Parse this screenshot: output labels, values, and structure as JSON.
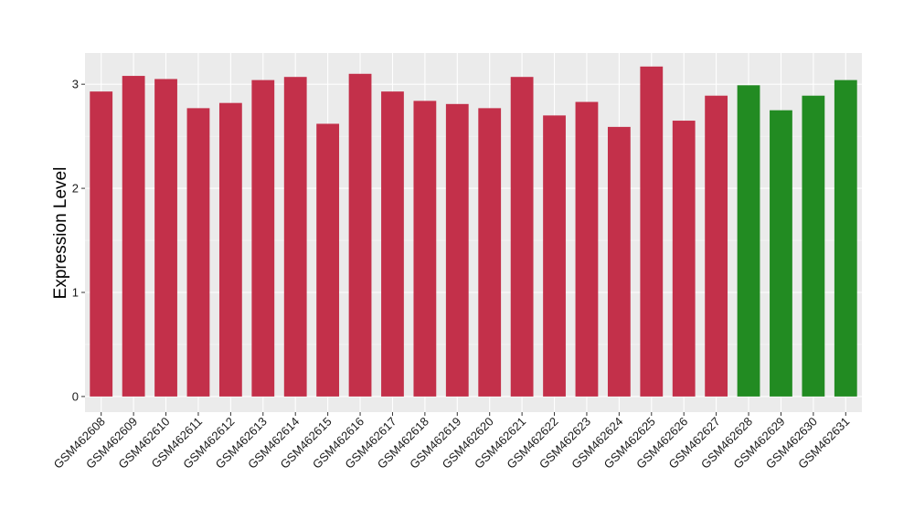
{
  "chart_data": {
    "type": "bar",
    "title": "",
    "xlabel": "",
    "ylabel": "Expression Level",
    "ylim": [
      -0.15,
      3.3
    ],
    "yticks": [
      0,
      1,
      2,
      3
    ],
    "grid": true,
    "legend": "none",
    "colors": {
      "panel_background": "#ebebeb",
      "grid_major": "#ffffff",
      "group_a": "#c3304a",
      "group_b": "#228b22"
    },
    "categories": [
      "GSM462608",
      "GSM462609",
      "GSM462610",
      "GSM462611",
      "GSM462612",
      "GSM462613",
      "GSM462614",
      "GSM462615",
      "GSM462616",
      "GSM462617",
      "GSM462618",
      "GSM462619",
      "GSM462620",
      "GSM462621",
      "GSM462622",
      "GSM462623",
      "GSM462624",
      "GSM462625",
      "GSM462626",
      "GSM462627",
      "GSM462628",
      "GSM462629",
      "GSM462630",
      "GSM462631"
    ],
    "values": [
      2.93,
      3.08,
      3.05,
      2.77,
      2.82,
      3.04,
      3.07,
      2.62,
      3.1,
      2.93,
      2.84,
      2.81,
      2.77,
      3.07,
      2.7,
      2.83,
      2.59,
      3.17,
      2.65,
      2.89,
      2.99,
      2.75,
      2.89,
      3.04
    ],
    "bar_groups": [
      "a",
      "a",
      "a",
      "a",
      "a",
      "a",
      "a",
      "a",
      "a",
      "a",
      "a",
      "a",
      "a",
      "a",
      "a",
      "a",
      "a",
      "a",
      "a",
      "a",
      "b",
      "b",
      "b",
      "b"
    ]
  }
}
